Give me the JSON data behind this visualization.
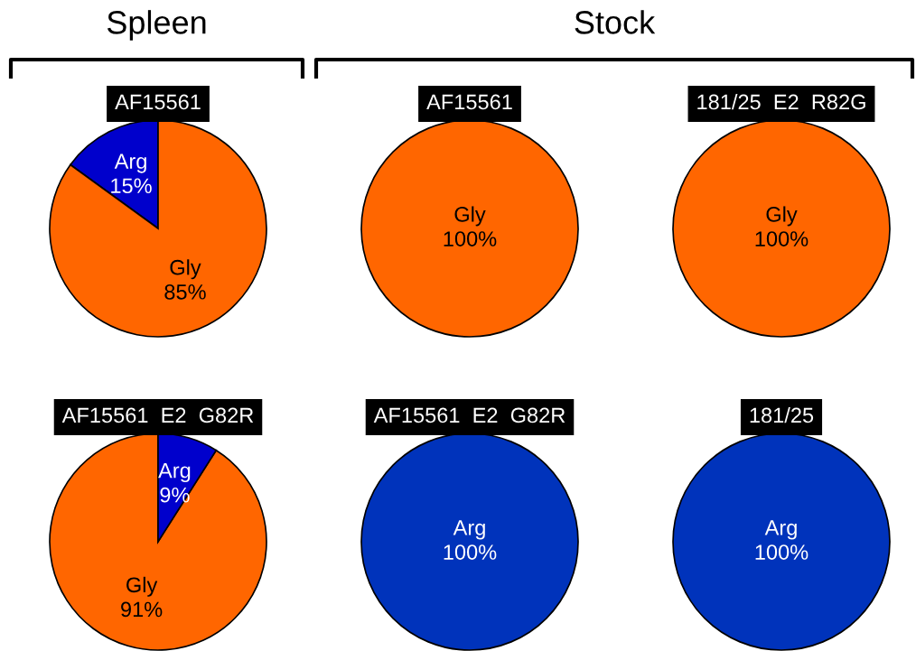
{
  "chart_data": [
    {
      "type": "pie",
      "title": "AF15561",
      "annotations": [
        "Spleen"
      ],
      "categories": [
        "Arg",
        "Gly"
      ],
      "values": [
        15,
        85
      ],
      "colors": [
        "#0000cc",
        "#ff6600"
      ],
      "value_labels": [
        "15%",
        "85%"
      ]
    },
    {
      "type": "pie",
      "title": "AF15561",
      "annotations": [
        "Stock"
      ],
      "categories": [
        "Gly"
      ],
      "values": [
        100
      ],
      "colors": [
        "#ff6600"
      ],
      "value_labels": [
        "100%"
      ]
    },
    {
      "type": "pie",
      "title": "181/25  E2  R82G",
      "categories": [
        "Gly"
      ],
      "values": [
        100
      ],
      "colors": [
        "#ff6600"
      ],
      "value_labels": [
        "100%"
      ]
    },
    {
      "type": "pie",
      "title": "AF15561  E2  G82R",
      "categories": [
        "Gly",
        "Arg"
      ],
      "values": [
        91,
        9
      ],
      "colors": [
        "#ff6600",
        "#0000cc"
      ],
      "value_labels": [
        "91%",
        "9%"
      ]
    },
    {
      "type": "pie",
      "title": "AF15561  E2  G82R",
      "categories": [
        "Arg"
      ],
      "values": [
        100
      ],
      "colors": [
        "#0033bb"
      ],
      "value_labels": [
        "100%"
      ]
    },
    {
      "type": "pie",
      "title": "181/25",
      "categories": [
        "Arg"
      ],
      "values": [
        100
      ],
      "colors": [
        "#0033bb"
      ],
      "value_labels": [
        "100%"
      ]
    }
  ]
}
